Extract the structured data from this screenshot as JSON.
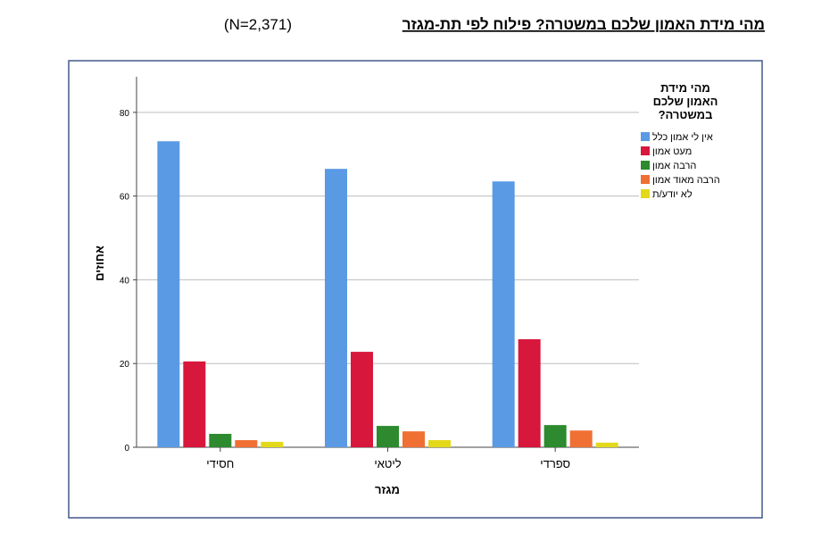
{
  "chart_data": {
    "type": "bar",
    "title": "מהי מידת האמון שלכם במשטרה?  פילוח לפי תת-מגזר",
    "subtitle": "(N=2,371)",
    "x_label": "מגזר",
    "y_label": "אחוזים",
    "legend_title": "מהי מידת האמון שלכם במשטרה?",
    "categories": [
      "חסידי",
      "ליטאי",
      "ספרדי"
    ],
    "series": [
      {
        "name": "אין לי אמון כלל",
        "color": "#5a9ae5",
        "values": [
          73.1,
          66.5,
          63.5
        ]
      },
      {
        "name": "מעט אמון",
        "color": "#d8173c",
        "values": [
          20.5,
          22.8,
          25.8
        ]
      },
      {
        "name": "הרבה אמון",
        "color": "#2d8a2e",
        "values": [
          3.2,
          5.1,
          5.3
        ]
      },
      {
        "name": "הרבה מאוד אמון",
        "color": "#f07033",
        "values": [
          1.7,
          3.8,
          4.0
        ]
      },
      {
        "name": "לא יודע/ת",
        "color": "#e3d81a",
        "values": [
          1.3,
          1.7,
          1.1
        ]
      }
    ],
    "ylim": [
      0,
      88.5
    ],
    "yticks": [
      0,
      20,
      40,
      60,
      80
    ],
    "grid": true,
    "legend": "right"
  }
}
